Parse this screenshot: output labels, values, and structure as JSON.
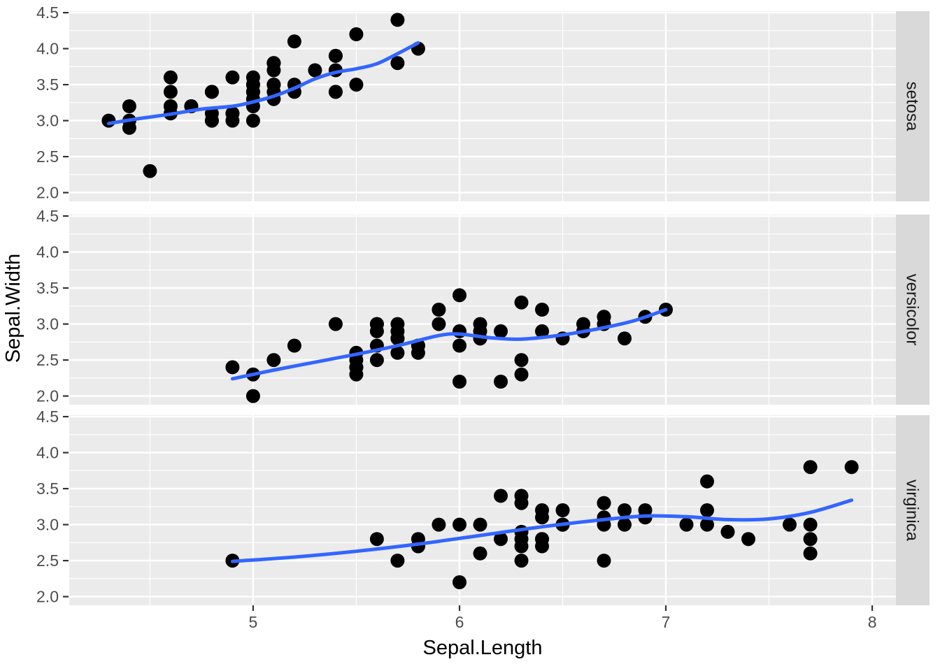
{
  "chart_data": {
    "type": "scatter",
    "title": "",
    "xlabel": "Sepal.Length",
    "ylabel": "Sepal.Width",
    "legend": "none",
    "grid": "on",
    "x_domain": [
      4.109,
      8.115
    ],
    "y_domain": [
      1.88,
      4.52
    ],
    "x_ticks": {
      "values": [
        5,
        6,
        7,
        8
      ],
      "labels": [
        "5",
        "6",
        "7",
        "8"
      ]
    },
    "y_ticks": {
      "values": [
        2.0,
        2.5,
        3.0,
        3.5,
        4.0,
        4.5
      ],
      "labels": [
        "2.0",
        "2.5",
        "3.0",
        "3.5",
        "4.0",
        "4.5"
      ]
    },
    "facets": [
      {
        "label": "setosa",
        "points": [
          [
            5.1,
            3.5
          ],
          [
            4.9,
            3.0
          ],
          [
            4.7,
            3.2
          ],
          [
            4.6,
            3.1
          ],
          [
            5.0,
            3.6
          ],
          [
            5.4,
            3.9
          ],
          [
            4.6,
            3.4
          ],
          [
            5.0,
            3.4
          ],
          [
            4.4,
            2.9
          ],
          [
            4.9,
            3.1
          ],
          [
            5.4,
            3.7
          ],
          [
            4.8,
            3.4
          ],
          [
            4.8,
            3.0
          ],
          [
            4.3,
            3.0
          ],
          [
            5.8,
            4.0
          ],
          [
            5.7,
            4.4
          ],
          [
            5.4,
            3.9
          ],
          [
            5.1,
            3.5
          ],
          [
            5.7,
            3.8
          ],
          [
            5.1,
            3.8
          ],
          [
            5.4,
            3.4
          ],
          [
            5.1,
            3.7
          ],
          [
            4.6,
            3.6
          ],
          [
            5.1,
            3.3
          ],
          [
            4.8,
            3.4
          ],
          [
            5.0,
            3.0
          ],
          [
            5.0,
            3.4
          ],
          [
            5.2,
            3.5
          ],
          [
            5.2,
            3.4
          ],
          [
            4.7,
            3.2
          ],
          [
            4.8,
            3.1
          ],
          [
            5.4,
            3.4
          ],
          [
            5.2,
            4.1
          ],
          [
            5.5,
            4.2
          ],
          [
            4.9,
            3.1
          ],
          [
            5.0,
            3.2
          ],
          [
            5.5,
            3.5
          ],
          [
            4.9,
            3.6
          ],
          [
            4.4,
            3.0
          ],
          [
            5.1,
            3.4
          ],
          [
            5.0,
            3.5
          ],
          [
            4.5,
            2.3
          ],
          [
            4.4,
            3.2
          ],
          [
            5.0,
            3.5
          ],
          [
            5.1,
            3.8
          ],
          [
            4.8,
            3.0
          ],
          [
            5.1,
            3.8
          ],
          [
            4.6,
            3.2
          ],
          [
            5.3,
            3.7
          ],
          [
            5.0,
            3.3
          ]
        ],
        "smooth": [
          [
            4.3,
            2.96
          ],
          [
            4.45,
            3.03
          ],
          [
            4.6,
            3.09
          ],
          [
            4.75,
            3.16
          ],
          [
            4.9,
            3.2
          ],
          [
            5.0,
            3.26
          ],
          [
            5.1,
            3.34
          ],
          [
            5.2,
            3.45
          ],
          [
            5.3,
            3.58
          ],
          [
            5.4,
            3.67
          ],
          [
            5.5,
            3.72
          ],
          [
            5.6,
            3.79
          ],
          [
            5.7,
            3.93
          ],
          [
            5.8,
            4.08
          ]
        ]
      },
      {
        "label": "versicolor",
        "points": [
          [
            7.0,
            3.2
          ],
          [
            6.4,
            3.2
          ],
          [
            6.9,
            3.1
          ],
          [
            5.5,
            2.3
          ],
          [
            6.5,
            2.8
          ],
          [
            5.7,
            2.8
          ],
          [
            6.3,
            3.3
          ],
          [
            4.9,
            2.4
          ],
          [
            6.6,
            2.9
          ],
          [
            5.2,
            2.7
          ],
          [
            5.0,
            2.0
          ],
          [
            5.9,
            3.0
          ],
          [
            6.0,
            2.2
          ],
          [
            6.1,
            2.9
          ],
          [
            5.6,
            2.9
          ],
          [
            6.7,
            3.1
          ],
          [
            5.6,
            3.0
          ],
          [
            5.8,
            2.7
          ],
          [
            6.2,
            2.2
          ],
          [
            5.6,
            2.5
          ],
          [
            5.9,
            3.2
          ],
          [
            6.1,
            2.8
          ],
          [
            6.3,
            2.5
          ],
          [
            6.1,
            2.8
          ],
          [
            6.4,
            2.9
          ],
          [
            6.6,
            3.0
          ],
          [
            6.8,
            2.8
          ],
          [
            6.7,
            3.0
          ],
          [
            6.0,
            2.9
          ],
          [
            5.7,
            2.6
          ],
          [
            5.5,
            2.4
          ],
          [
            5.5,
            2.4
          ],
          [
            5.8,
            2.7
          ],
          [
            6.0,
            2.7
          ],
          [
            5.4,
            3.0
          ],
          [
            6.0,
            3.4
          ],
          [
            6.7,
            3.1
          ],
          [
            6.3,
            2.3
          ],
          [
            5.6,
            3.0
          ],
          [
            5.5,
            2.5
          ],
          [
            5.5,
            2.6
          ],
          [
            6.1,
            3.0
          ],
          [
            5.8,
            2.6
          ],
          [
            5.0,
            2.3
          ],
          [
            5.6,
            2.7
          ],
          [
            5.7,
            3.0
          ],
          [
            5.7,
            2.9
          ],
          [
            6.2,
            2.9
          ],
          [
            5.1,
            2.5
          ],
          [
            5.7,
            2.8
          ]
        ],
        "smooth": [
          [
            4.9,
            2.24
          ],
          [
            5.1,
            2.36
          ],
          [
            5.3,
            2.47
          ],
          [
            5.5,
            2.58
          ],
          [
            5.7,
            2.7
          ],
          [
            5.9,
            2.84
          ],
          [
            6.0,
            2.86
          ],
          [
            6.15,
            2.81
          ],
          [
            6.3,
            2.79
          ],
          [
            6.5,
            2.85
          ],
          [
            6.7,
            2.95
          ],
          [
            6.85,
            3.05
          ],
          [
            7.0,
            3.2
          ]
        ]
      },
      {
        "label": "virginica",
        "points": [
          [
            6.3,
            3.3
          ],
          [
            5.8,
            2.7
          ],
          [
            7.1,
            3.0
          ],
          [
            6.3,
            2.9
          ],
          [
            6.5,
            3.0
          ],
          [
            7.6,
            3.0
          ],
          [
            4.9,
            2.5
          ],
          [
            7.3,
            2.9
          ],
          [
            6.7,
            2.5
          ],
          [
            7.2,
            3.6
          ],
          [
            6.5,
            3.2
          ],
          [
            6.4,
            2.7
          ],
          [
            6.8,
            3.0
          ],
          [
            5.7,
            2.5
          ],
          [
            5.8,
            2.8
          ],
          [
            6.4,
            3.2
          ],
          [
            6.5,
            3.0
          ],
          [
            7.7,
            3.8
          ],
          [
            7.7,
            2.6
          ],
          [
            6.0,
            2.2
          ],
          [
            6.9,
            3.2
          ],
          [
            5.6,
            2.8
          ],
          [
            7.7,
            2.8
          ],
          [
            6.3,
            2.7
          ],
          [
            6.7,
            3.3
          ],
          [
            7.2,
            3.2
          ],
          [
            6.2,
            2.8
          ],
          [
            6.1,
            3.0
          ],
          [
            6.4,
            2.8
          ],
          [
            7.2,
            3.0
          ],
          [
            7.4,
            2.8
          ],
          [
            7.9,
            3.8
          ],
          [
            6.4,
            2.8
          ],
          [
            6.3,
            2.8
          ],
          [
            6.1,
            2.6
          ],
          [
            7.7,
            3.0
          ],
          [
            6.3,
            3.4
          ],
          [
            6.4,
            3.1
          ],
          [
            6.0,
            3.0
          ],
          [
            6.9,
            3.1
          ],
          [
            6.7,
            3.1
          ],
          [
            6.9,
            3.1
          ],
          [
            5.8,
            2.7
          ],
          [
            6.8,
            3.2
          ],
          [
            6.7,
            3.3
          ],
          [
            6.7,
            3.0
          ],
          [
            6.3,
            2.5
          ],
          [
            6.5,
            3.0
          ],
          [
            6.2,
            3.4
          ],
          [
            5.9,
            3.0
          ]
        ],
        "smooth": [
          [
            4.9,
            2.49
          ],
          [
            5.2,
            2.55
          ],
          [
            5.5,
            2.63
          ],
          [
            5.8,
            2.73
          ],
          [
            6.1,
            2.85
          ],
          [
            6.4,
            2.97
          ],
          [
            6.7,
            3.07
          ],
          [
            6.9,
            3.12
          ],
          [
            7.1,
            3.11
          ],
          [
            7.3,
            3.07
          ],
          [
            7.5,
            3.08
          ],
          [
            7.7,
            3.17
          ],
          [
            7.9,
            3.34
          ]
        ]
      }
    ]
  },
  "style": {
    "panel_bg": "#ebebeb",
    "strip_bg": "#d9d9d9",
    "grid_color": "#ffffff",
    "point_color": "#000000",
    "smooth_color": "#3366ff",
    "tick_mark_color": "#333333",
    "tick_label_color": "#4d4d4d",
    "axis_title_color": "#000000",
    "strip_text_color": "#1a1a1a"
  }
}
